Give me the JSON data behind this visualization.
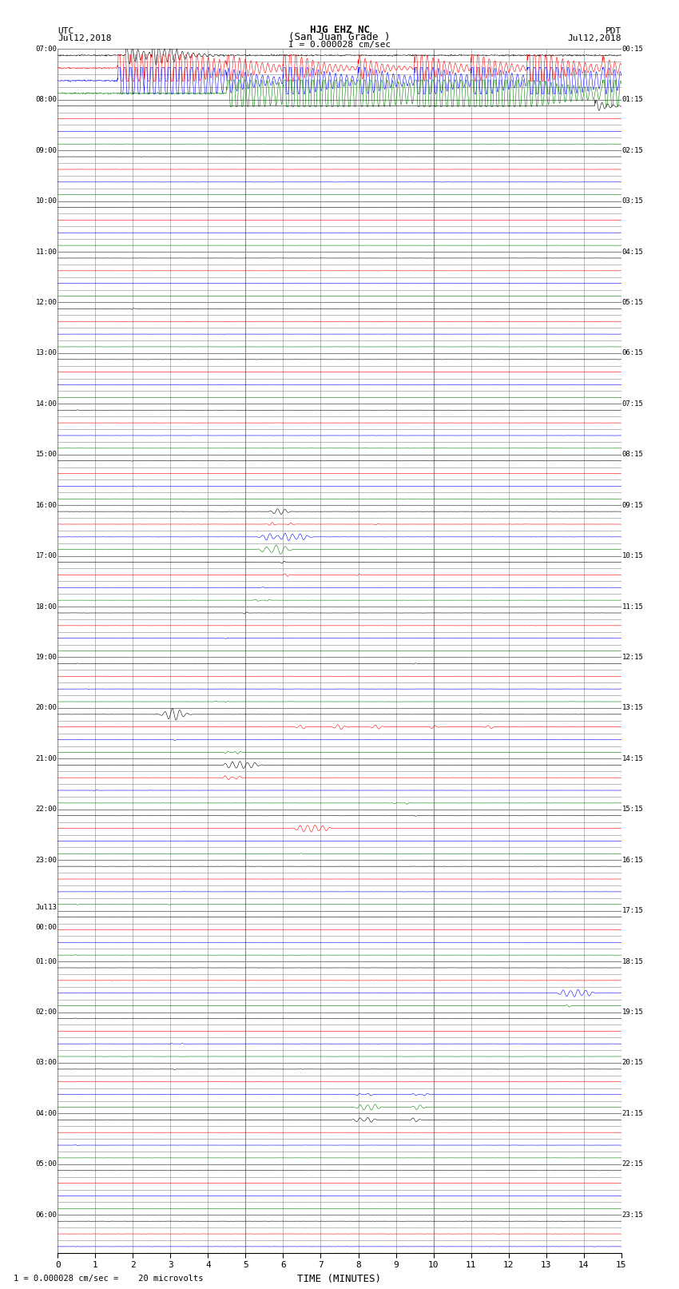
{
  "title_line1": "HJG EHZ NC",
  "title_line2": "(San Juan Grade )",
  "title_line3": "I = 0.000028 cm/sec",
  "left_header_line1": "UTC",
  "left_header_line2": "Jul12,2018",
  "right_header_line1": "PDT",
  "right_header_line2": "Jul12,2018",
  "xlabel": "TIME (MINUTES)",
  "footer": "1 = 0.000028 cm/sec =    20 microvolts",
  "bg_color": "#ffffff",
  "grid_color": "#888888",
  "trace_colors": [
    "black",
    "red",
    "blue",
    "green"
  ],
  "left_times": [
    "07:00",
    "",
    "",
    "",
    "08:00",
    "",
    "",
    "",
    "09:00",
    "",
    "",
    "",
    "10:00",
    "",
    "",
    "",
    "11:00",
    "",
    "",
    "",
    "12:00",
    "",
    "",
    "",
    "13:00",
    "",
    "",
    "",
    "14:00",
    "",
    "",
    "",
    "15:00",
    "",
    "",
    "",
    "16:00",
    "",
    "",
    "",
    "17:00",
    "",
    "",
    "",
    "18:00",
    "",
    "",
    "",
    "19:00",
    "",
    "",
    "",
    "20:00",
    "",
    "",
    "",
    "21:00",
    "",
    "",
    "",
    "22:00",
    "",
    "",
    "",
    "23:00",
    "",
    "",
    "",
    "Jul13",
    "00:00",
    "",
    "",
    "01:00",
    "",
    "",
    "",
    "02:00",
    "",
    "",
    "",
    "03:00",
    "",
    "",
    "",
    "04:00",
    "",
    "",
    "",
    "05:00",
    "",
    "",
    "",
    "06:00",
    "",
    ""
  ],
  "right_times": [
    "00:15",
    "",
    "",
    "",
    "01:15",
    "",
    "",
    "",
    "02:15",
    "",
    "",
    "",
    "03:15",
    "",
    "",
    "",
    "04:15",
    "",
    "",
    "",
    "05:15",
    "",
    "",
    "",
    "06:15",
    "",
    "",
    "",
    "07:15",
    "",
    "",
    "",
    "08:15",
    "",
    "",
    "",
    "09:15",
    "",
    "",
    "",
    "10:15",
    "",
    "",
    "",
    "11:15",
    "",
    "",
    "",
    "12:15",
    "",
    "",
    "",
    "13:15",
    "",
    "",
    "",
    "14:15",
    "",
    "",
    "",
    "15:15",
    "",
    "",
    "",
    "16:15",
    "",
    "",
    "",
    "17:15",
    "",
    "",
    "",
    "18:15",
    "",
    "",
    "",
    "19:15",
    "",
    "",
    "",
    "20:15",
    "",
    "",
    "",
    "21:15",
    "",
    "",
    "",
    "22:15",
    "",
    "",
    "",
    "23:15",
    "",
    ""
  ],
  "n_rows": 95,
  "figsize": [
    8.5,
    16.13
  ],
  "dpi": 100
}
